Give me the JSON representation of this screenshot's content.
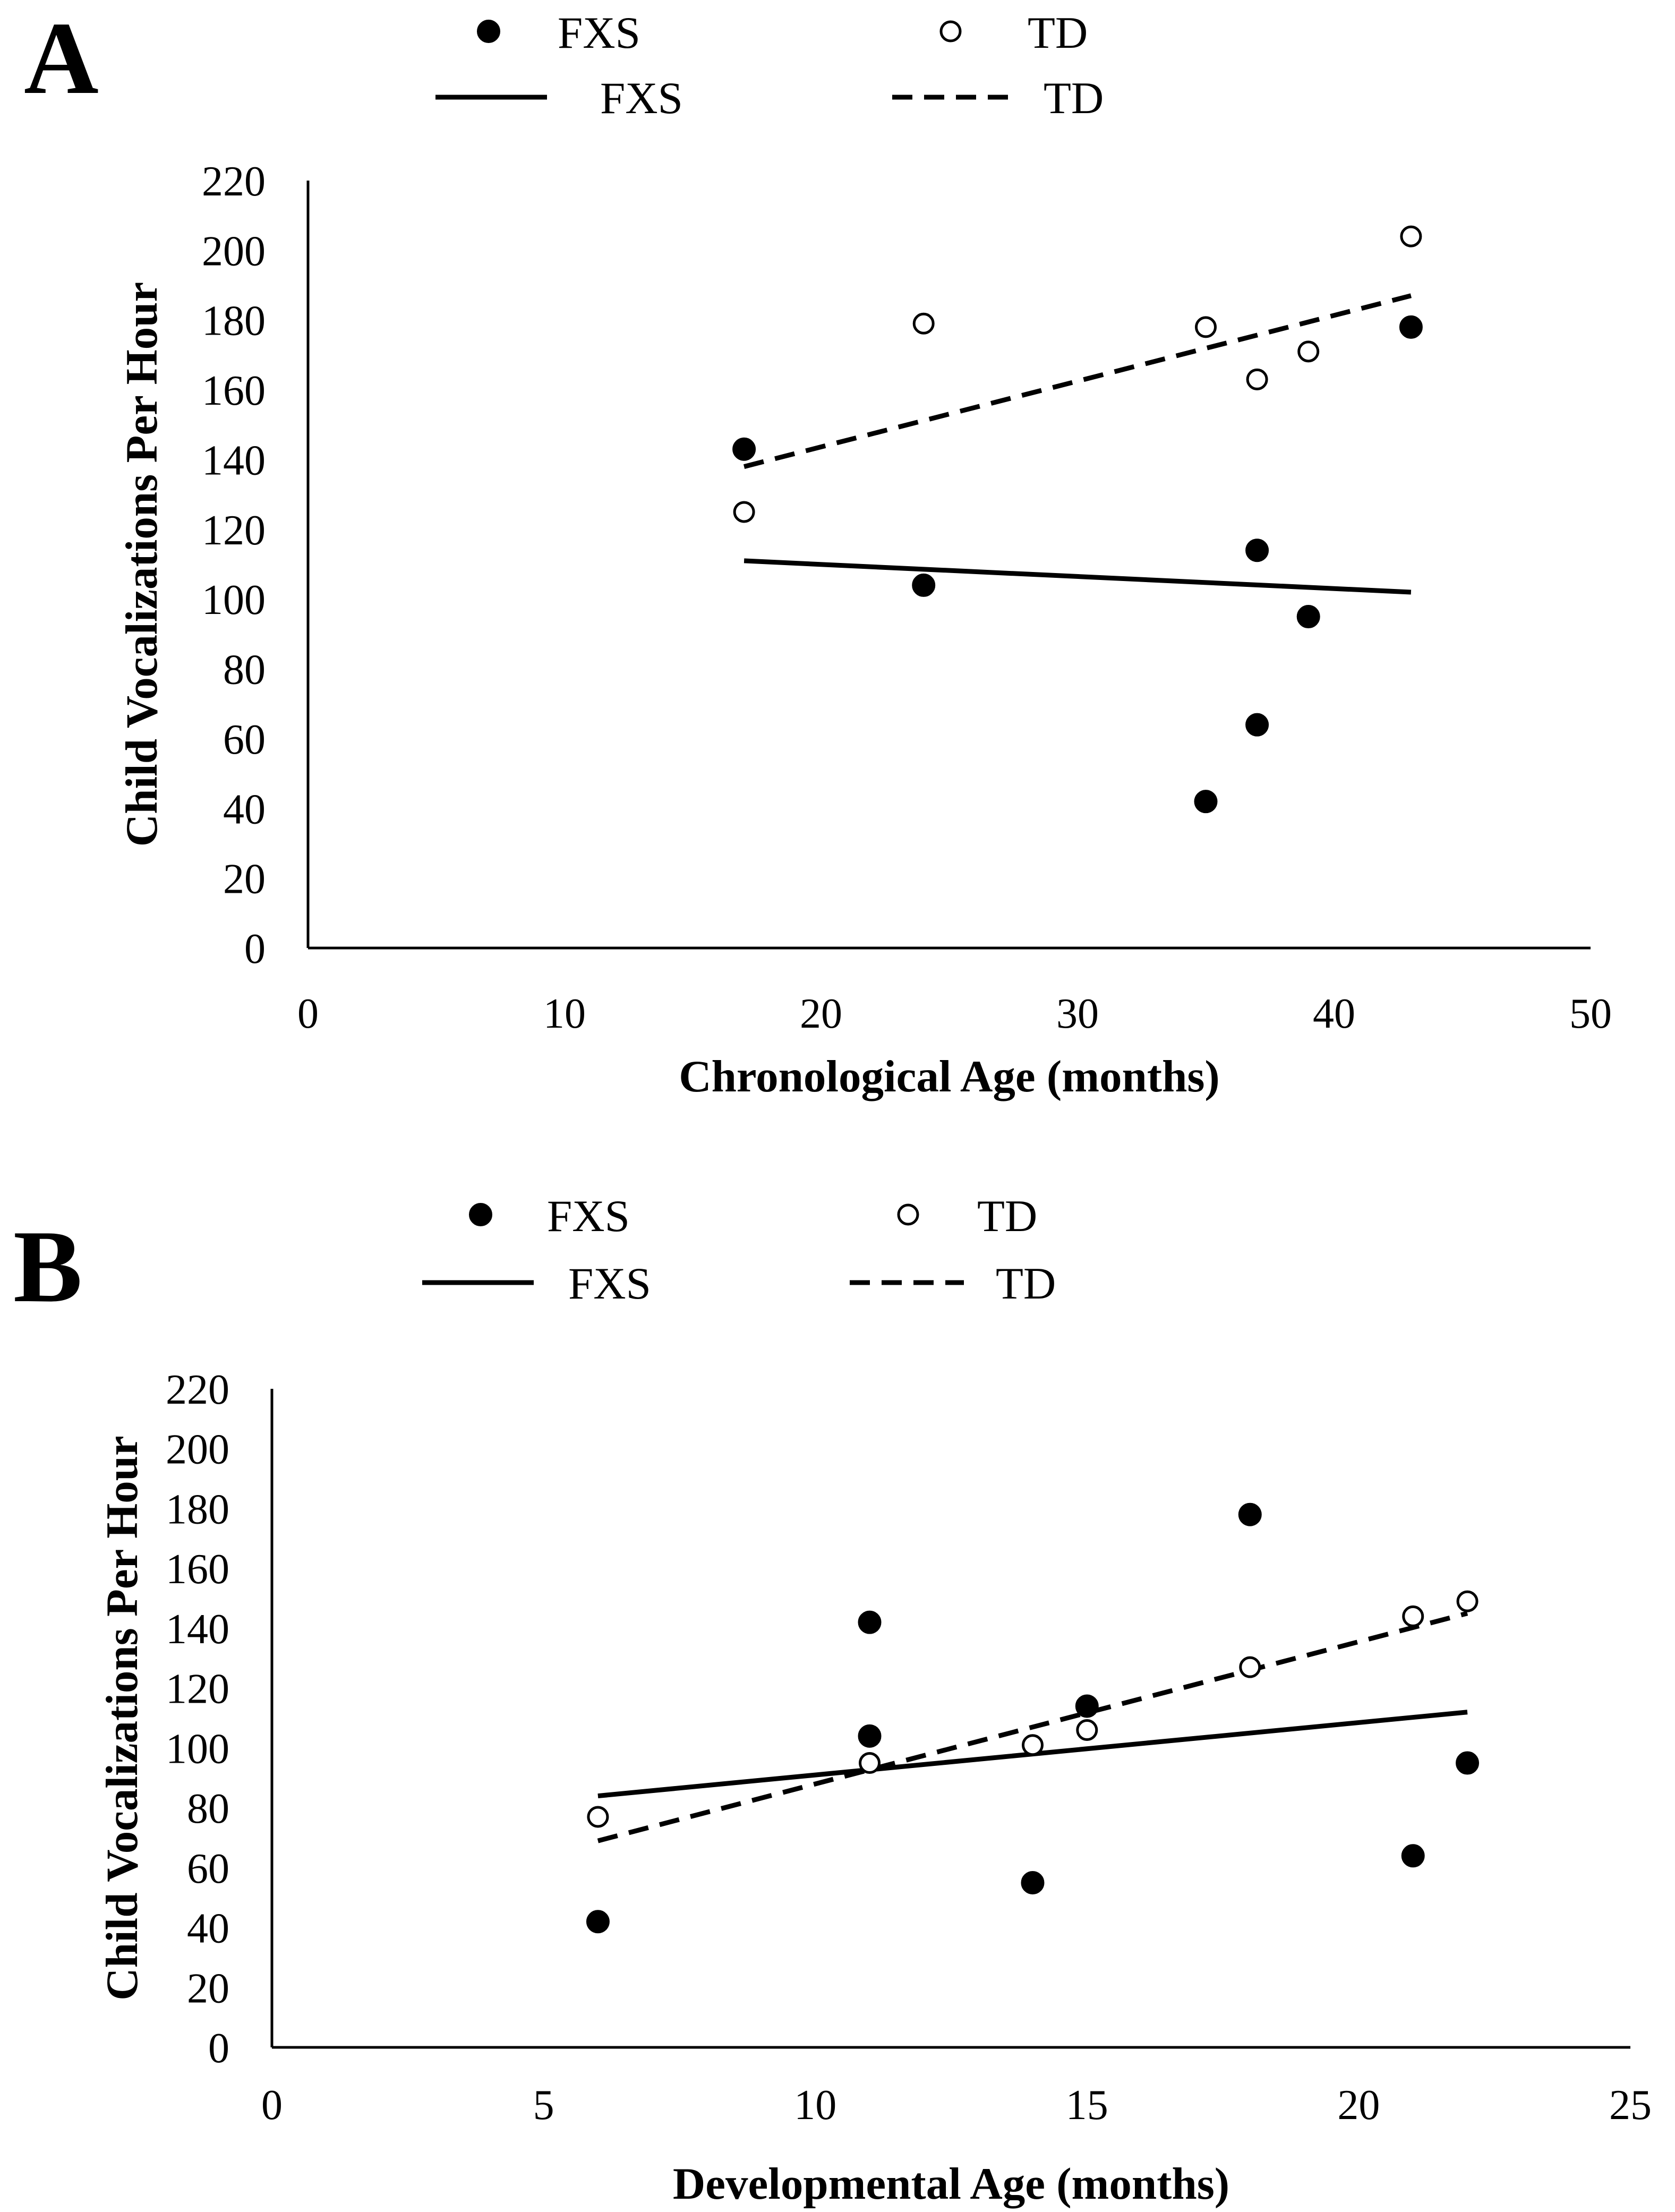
{
  "chart_data": [
    {
      "type": "scatter",
      "panel_label": "A",
      "title": "",
      "xlabel": "Chronological Age (months)",
      "ylabel": "Child Vocalizations Per Hour",
      "xlim": [
        0,
        50
      ],
      "ylim": [
        0,
        220
      ],
      "x_ticks": [
        0,
        10,
        20,
        30,
        40,
        50
      ],
      "y_ticks": [
        0,
        20,
        40,
        60,
        80,
        100,
        120,
        140,
        160,
        180,
        200,
        220
      ],
      "grid": false,
      "legend_position": "top",
      "legend": {
        "marker_fxs": "FXS",
        "marker_td": "TD",
        "line_fxs": "FXS",
        "line_td": "TD"
      },
      "series": [
        {
          "name": "FXS",
          "marker": "filled-circle",
          "points": [
            [
              17,
              143
            ],
            [
              24,
              104
            ],
            [
              35,
              42
            ],
            [
              37,
              114
            ],
            [
              37,
              64
            ],
            [
              39,
              95
            ],
            [
              43,
              178
            ]
          ],
          "trendline": {
            "style": "solid",
            "x": [
              17,
              43
            ],
            "y": [
              111,
              102
            ]
          }
        },
        {
          "name": "TD",
          "marker": "open-circle",
          "points": [
            [
              17,
              125
            ],
            [
              24,
              179
            ],
            [
              35,
              178
            ],
            [
              37,
              163
            ],
            [
              39,
              171
            ],
            [
              43,
              204
            ]
          ],
          "trendline": {
            "style": "dashed",
            "x": [
              17,
              43
            ],
            "y": [
              138,
              187
            ]
          }
        }
      ]
    },
    {
      "type": "scatter",
      "panel_label": "B",
      "title": "",
      "xlabel": "Developmental Age (months)",
      "ylabel": "Child Vocalizations Per Hour",
      "xlim": [
        0,
        25
      ],
      "ylim": [
        0,
        220
      ],
      "x_ticks": [
        0,
        5,
        10,
        15,
        20,
        25
      ],
      "y_ticks": [
        0,
        20,
        40,
        60,
        80,
        100,
        120,
        140,
        160,
        180,
        200,
        220
      ],
      "grid": false,
      "legend_position": "top",
      "legend": {
        "marker_fxs": "FXS",
        "marker_td": "TD",
        "line_fxs": "FXS",
        "line_td": "TD"
      },
      "series": [
        {
          "name": "FXS",
          "marker": "filled-circle",
          "points": [
            [
              6,
              42
            ],
            [
              11,
              142
            ],
            [
              11,
              104
            ],
            [
              14,
              55
            ],
            [
              15,
              114
            ],
            [
              18,
              178
            ],
            [
              21,
              64
            ],
            [
              22,
              95
            ]
          ],
          "trendline": {
            "style": "solid",
            "x": [
              6,
              22
            ],
            "y": [
              84,
              112
            ]
          }
        },
        {
          "name": "TD",
          "marker": "open-circle",
          "points": [
            [
              6,
              77
            ],
            [
              11,
              95
            ],
            [
              14,
              101
            ],
            [
              15,
              106
            ],
            [
              18,
              127
            ],
            [
              21,
              144
            ],
            [
              22,
              149
            ]
          ],
          "trendline": {
            "style": "dashed",
            "x": [
              6,
              22
            ],
            "y": [
              69,
              145
            ]
          }
        }
      ]
    }
  ]
}
